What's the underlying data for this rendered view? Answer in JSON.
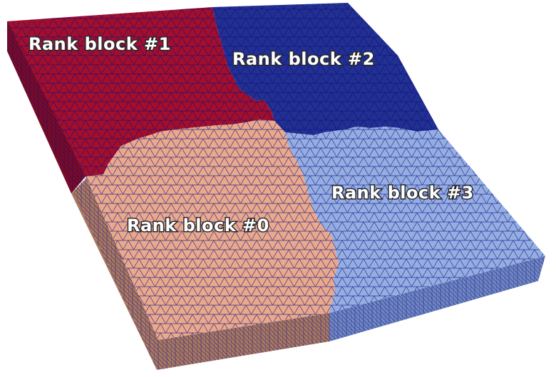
{
  "labels": {
    "block0": "Rank block #0",
    "block1": "Rank block #1",
    "block2": "Rank block #2",
    "block3": "Rank block #3"
  },
  "colors": {
    "block0": "#e9a98a",
    "block1": "#a30f2a",
    "block2": "#22308f",
    "block3": "#95aee0",
    "mesh_edge": "#0a0a8c"
  }
}
